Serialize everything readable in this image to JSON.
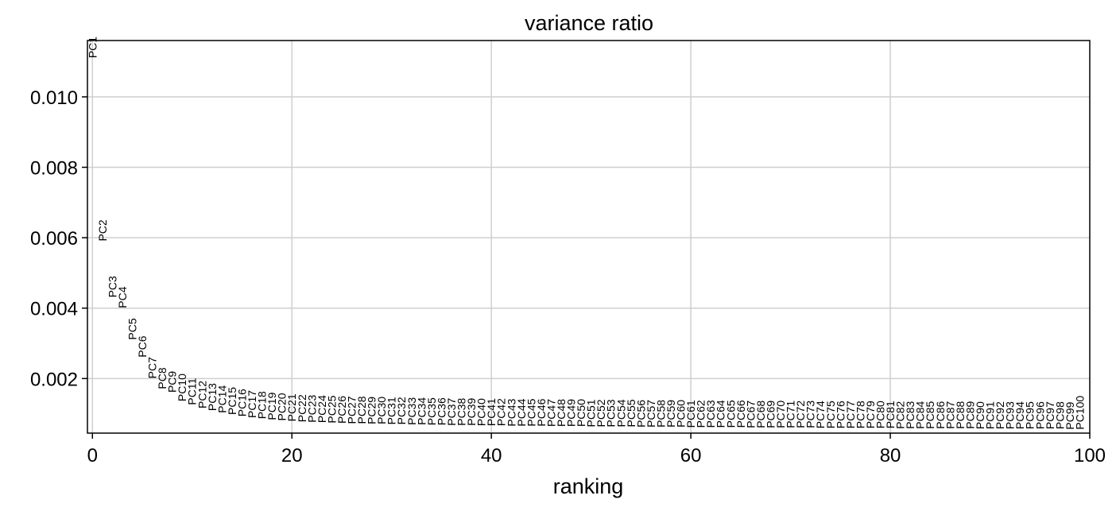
{
  "chart_data": {
    "type": "scatter",
    "title": "variance ratio",
    "xlabel": "ranking",
    "ylabel": "",
    "xlim": [
      -0.5,
      100
    ],
    "ylim": [
      0.00045,
      0.0116
    ],
    "grid": true,
    "xticks": [
      0,
      20,
      40,
      60,
      80,
      100
    ],
    "xtick_labels": [
      "0",
      "20",
      "40",
      "60",
      "80",
      "100"
    ],
    "yticks": [
      0.002,
      0.004,
      0.006,
      0.008,
      0.01
    ],
    "ytick_labels": [
      "0.002",
      "0.004",
      "0.006",
      "0.008",
      "0.010"
    ],
    "point_labels": [
      "PC1",
      "PC2",
      "PC3",
      "PC4",
      "PC5",
      "PC6",
      "PC7",
      "PC8",
      "PC9",
      "PC10",
      "PC11",
      "PC12",
      "PC13",
      "PC14",
      "PC15",
      "PC16",
      "PC17",
      "PC18",
      "PC19",
      "PC20",
      "PC21",
      "PC22",
      "PC23",
      "PC24",
      "PC25",
      "PC26",
      "PC27",
      "PC28",
      "PC29",
      "PC30",
      "PC31",
      "PC32",
      "PC33",
      "PC34",
      "PC35",
      "PC36",
      "PC37",
      "PC38",
      "PC39",
      "PC40",
      "PC41",
      "PC42",
      "PC43",
      "PC44",
      "PC45",
      "PC46",
      "PC47",
      "PC48",
      "PC49",
      "PC50",
      "PC51",
      "PC52",
      "PC53",
      "PC54",
      "PC55",
      "PC56",
      "PC57",
      "PC58",
      "PC59",
      "PC60",
      "PC61",
      "PC62",
      "PC63",
      "PC64",
      "PC65",
      "PC66",
      "PC67",
      "PC68",
      "PC69",
      "PC70",
      "PC71",
      "PC72",
      "PC73",
      "PC74",
      "PC75",
      "PC76",
      "PC77",
      "PC78",
      "PC79",
      "PC80",
      "PC81",
      "PC82",
      "PC83",
      "PC84",
      "PC85",
      "PC86",
      "PC87",
      "PC88",
      "PC89",
      "PC90",
      "PC91",
      "PC92",
      "PC93",
      "PC94",
      "PC95",
      "PC96",
      "PC97",
      "PC98",
      "PC99",
      "PC100"
    ],
    "x": [
      0,
      1,
      2,
      3,
      4,
      5,
      6,
      7,
      8,
      9,
      10,
      11,
      12,
      13,
      14,
      15,
      16,
      17,
      18,
      19,
      20,
      21,
      22,
      23,
      24,
      25,
      26,
      27,
      28,
      29,
      30,
      31,
      32,
      33,
      34,
      35,
      36,
      37,
      38,
      39,
      40,
      41,
      42,
      43,
      44,
      45,
      46,
      47,
      48,
      49,
      50,
      51,
      52,
      53,
      54,
      55,
      56,
      57,
      58,
      59,
      60,
      61,
      62,
      63,
      64,
      65,
      66,
      67,
      68,
      69,
      70,
      71,
      72,
      73,
      74,
      75,
      76,
      77,
      78,
      79,
      80,
      81,
      82,
      83,
      84,
      85,
      86,
      87,
      88,
      89,
      90,
      91,
      92,
      93,
      94,
      95,
      96,
      97,
      98,
      99
    ],
    "y": [
      0.0111,
      0.0059,
      0.0043,
      0.004,
      0.0031,
      0.0026,
      0.002,
      0.0017,
      0.0016,
      0.00135,
      0.00125,
      0.00115,
      0.00108,
      0.00102,
      0.00097,
      0.00092,
      0.00088,
      0.00085,
      0.00082,
      0.0008,
      0.00078,
      0.00076,
      0.00075,
      0.00074,
      0.00073,
      0.00072,
      0.00071,
      0.00071,
      0.0007,
      0.0007,
      0.00069,
      0.00069,
      0.00068,
      0.00068,
      0.00067,
      0.00067,
      0.00066,
      0.00066,
      0.00066,
      0.00065,
      0.00065,
      0.00065,
      0.00064,
      0.00064,
      0.00064,
      0.00064,
      0.00063,
      0.00063,
      0.00063,
      0.00063,
      0.00062,
      0.00062,
      0.00062,
      0.00062,
      0.00062,
      0.00061,
      0.00061,
      0.00061,
      0.00061,
      0.00061,
      0.0006,
      0.0006,
      0.0006,
      0.0006,
      0.0006,
      0.0006,
      0.00059,
      0.00059,
      0.00059,
      0.00059,
      0.00059,
      0.00059,
      0.00059,
      0.00058,
      0.00058,
      0.00058,
      0.00058,
      0.00058,
      0.00058,
      0.00058,
      0.00058,
      0.00057,
      0.00057,
      0.00057,
      0.00057,
      0.00057,
      0.00057,
      0.00057,
      0.00057,
      0.00056,
      0.00056,
      0.00056,
      0.00056,
      0.00056,
      0.00056,
      0.00056,
      0.00056,
      0.00056,
      0.00055,
      0.00055
    ]
  }
}
